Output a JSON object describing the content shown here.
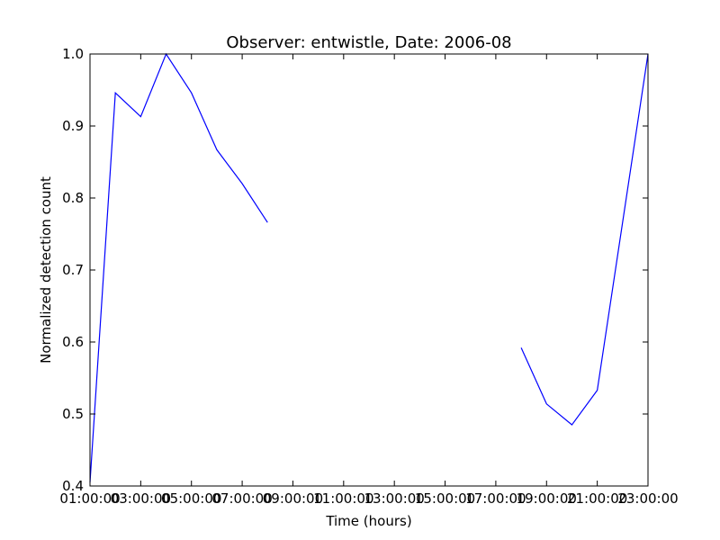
{
  "chart_data": {
    "type": "line",
    "title": "Observer: entwistle, Date: 2006-08",
    "xlabel": "Time (hours)",
    "ylabel": "Normalized detection count",
    "x_tick_labels": [
      "01:00:00",
      "03:00:00",
      "05:00:00",
      "07:00:00",
      "09:00:00",
      "11:00:00",
      "13:00:00",
      "15:00:00",
      "17:00:00",
      "19:00:00",
      "21:00:00",
      "23:00:00"
    ],
    "y_tick_labels": [
      "0.4",
      "0.5",
      "0.6",
      "0.7",
      "0.8",
      "0.9",
      "1.0"
    ],
    "xlim": [
      "01:00:00",
      "23:00:00"
    ],
    "ylim": [
      0.4,
      1.0
    ],
    "grid": false,
    "line_color": "#0000ff",
    "series": [
      {
        "segments": [
          [
            {
              "x": "01:00:00",
              "y": 0.405
            },
            {
              "x": "02:00:00",
              "y": 0.946
            },
            {
              "x": "03:00:00",
              "y": 0.913
            },
            {
              "x": "04:00:00",
              "y": 1.0
            },
            {
              "x": "05:00:00",
              "y": 0.946
            },
            {
              "x": "06:00:00",
              "y": 0.867
            },
            {
              "x": "07:00:00",
              "y": 0.82
            },
            {
              "x": "08:00:00",
              "y": 0.766
            }
          ],
          [
            {
              "x": "18:00:00",
              "y": 0.592
            },
            {
              "x": "19:00:00",
              "y": 0.514
            },
            {
              "x": "20:00:00",
              "y": 0.485
            },
            {
              "x": "21:00:00",
              "y": 0.533
            },
            {
              "x": "23:00:00",
              "y": 1.0
            }
          ]
        ]
      }
    ]
  }
}
